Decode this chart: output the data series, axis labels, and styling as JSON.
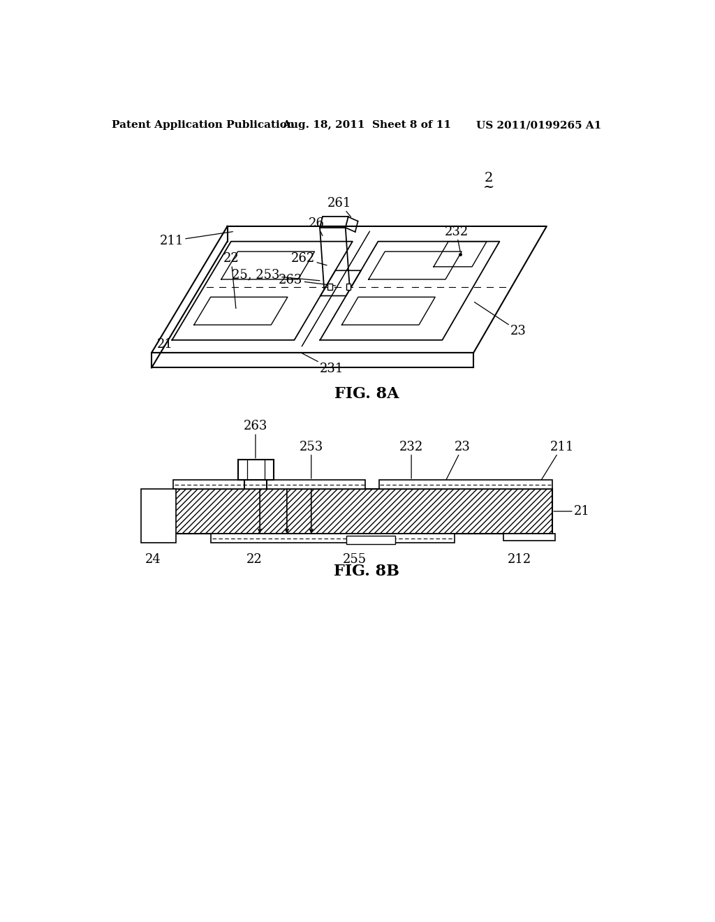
{
  "header_left": "Patent Application Publication",
  "header_center": "Aug. 18, 2011  Sheet 8 of 11",
  "header_right": "US 2011/0199265 A1",
  "fig_label_A": "FIG. 8A",
  "fig_label_B": "FIG. 8B",
  "background_color": "#ffffff",
  "line_color": "#000000",
  "fig_number": "2"
}
